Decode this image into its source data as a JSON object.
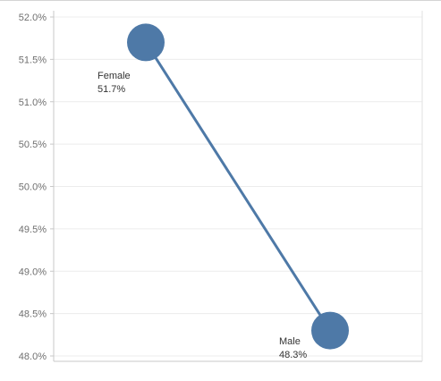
{
  "chart_data": {
    "type": "line",
    "title": "",
    "xlabel": "",
    "ylabel": "",
    "categories": [
      "Female",
      "Male"
    ],
    "values": [
      51.7,
      48.3
    ],
    "value_labels": [
      "51.7%",
      "48.3%"
    ],
    "ylim": [
      48.0,
      52.0
    ],
    "yticks": [
      52.0,
      51.5,
      51.0,
      50.5,
      50.0,
      49.5,
      49.0,
      48.5,
      48.0
    ],
    "ytick_labels": [
      "52.0%",
      "51.5%",
      "51.0%",
      "50.5%",
      "50.0%",
      "49.5%",
      "49.0%",
      "48.5%",
      "48.0%"
    ],
    "grid": true,
    "legend": "none",
    "colors": {
      "series": "#4e79a7",
      "grid": "#ececec",
      "axis": "#c8c8c8"
    }
  }
}
